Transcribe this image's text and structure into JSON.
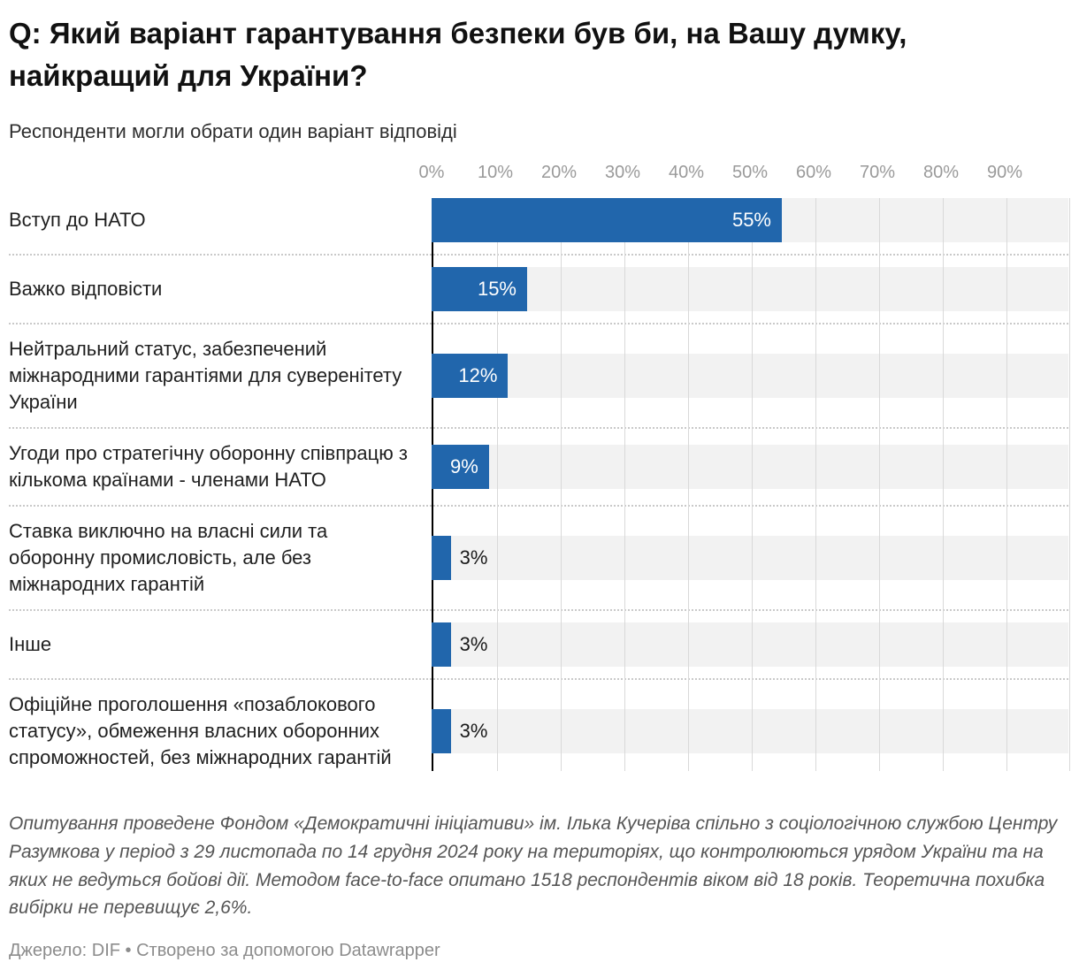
{
  "header": {
    "title": "Q: Який варіант гарантування безпеки був би, на Вашу думку, найкращий для України?",
    "subtitle": "Респонденти могли обрати один варіант відповіді"
  },
  "chart_data": {
    "type": "bar",
    "orientation": "horizontal",
    "title": "Q: Який варіант гарантування безпеки був би, на Вашу думку, найкращий для України?",
    "subtitle": "Респонденти могли обрати один варіант відповіді",
    "categories": [
      "Вступ до НАТО",
      "Важко відповісти",
      "Нейтральний статус, забезпечений міжнародними гарантіями для суверенітету України",
      "Угоди про стратегічну оборонну співпрацю з кількома країнами - членами НАТО",
      "Ставка виключно на власні сили та оборонну промисловість, але без міжнародних гарантій",
      "Інше",
      "Офіційне проголошення «позаблокового статусу», обмеження власних оборонних спроможностей, без міжнародних гарантій"
    ],
    "values": [
      55,
      15,
      12,
      9,
      3,
      3,
      3
    ],
    "value_labels": [
      "55%",
      "15%",
      "12%",
      "9%",
      "3%",
      "3%",
      "3%"
    ],
    "x_ticks": [
      "0%",
      "10%",
      "20%",
      "30%",
      "40%",
      "50%",
      "60%",
      "70%",
      "80%",
      "90%"
    ],
    "xlim": [
      0,
      100
    ],
    "grid": true,
    "legend": "none",
    "bar_color": "#2166ac",
    "track_color": "#f2f2f2",
    "gridline_color": "#d9d9d9",
    "axis_line_color": "#000000",
    "inside_label_min_value": 5
  },
  "footer": {
    "notes": "Опитування проведене Фондом «Демократичні ініціативи» ім. Ілька Кучеріва спільно з соціологічною службою Центру Разумкова у період з 29 листопада по 14 грудня 2024 року на територіях, що контролюються урядом України та на яких не ведуться бойові дії. Методом face-to-face опитано 1518 респондентів віком від 18 років. Теоретична похибка вибірки не перевищує 2,6%.",
    "source": "Джерело: DIF • Створено за допомогою Datawrapper"
  }
}
